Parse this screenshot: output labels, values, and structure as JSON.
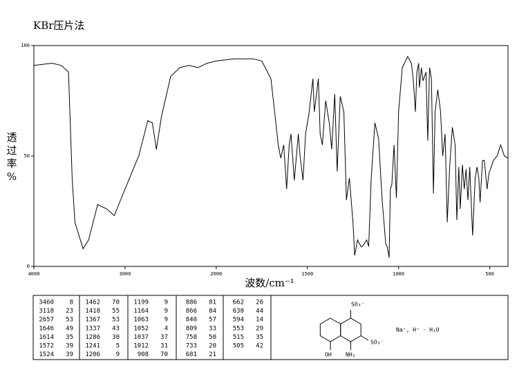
{
  "chart_data": {
    "type": "line",
    "title": "KBr压片法",
    "x_label": "波数/cm⁻¹",
    "y_label": "透过率\n%",
    "xlim": [
      4000,
      400
    ],
    "xticks": [
      4000,
      3000,
      2000,
      1500,
      1000,
      500
    ],
    "ylim": [
      0,
      100
    ],
    "yticks": [
      0,
      50,
      100
    ],
    "x": [
      4000,
      3800,
      3700,
      3620,
      3580,
      3550,
      3460,
      3400,
      3300,
      3200,
      3118,
      3050,
      2950,
      2850,
      2750,
      2700,
      2657,
      2600,
      2500,
      2400,
      2300,
      2200,
      2100,
      2000,
      1900,
      1800,
      1750,
      1700,
      1680,
      1660,
      1646,
      1630,
      1614,
      1600,
      1590,
      1572,
      1560,
      1550,
      1540,
      1524,
      1510,
      1490,
      1470,
      1462,
      1440,
      1430,
      1418,
      1400,
      1380,
      1367,
      1350,
      1337,
      1320,
      1300,
      1286,
      1270,
      1250,
      1241,
      1225,
      1206,
      1199,
      1190,
      1175,
      1164,
      1150,
      1130,
      1110,
      1090,
      1070,
      1063,
      1052,
      1045,
      1037,
      1025,
      1012,
      1000,
      980,
      950,
      930,
      920,
      908,
      900,
      890,
      886,
      875,
      866,
      850,
      840,
      830,
      820,
      809,
      800,
      785,
      770,
      758,
      745,
      733,
      720,
      705,
      690,
      681,
      670,
      662,
      650,
      640,
      630,
      620,
      610,
      594,
      580,
      570,
      560,
      553,
      540,
      530,
      515,
      505,
      480,
      460,
      440,
      420,
      400
    ],
    "series": [
      {
        "color": "#000000",
        "values": [
          91,
          92,
          91,
          88,
          40,
          20,
          8,
          12,
          28,
          26,
          23,
          30,
          40,
          50,
          66,
          65,
          53,
          68,
          86,
          90,
          91,
          90,
          92,
          93,
          94,
          94,
          93,
          85,
          70,
          55,
          49,
          55,
          35,
          55,
          60,
          39,
          50,
          60,
          50,
          39,
          60,
          70,
          85,
          70,
          85,
          60,
          55,
          75,
          65,
          53,
          78,
          43,
          77,
          70,
          30,
          40,
          20,
          5,
          12,
          9,
          9,
          10,
          12,
          9,
          40,
          65,
          58,
          30,
          10,
          9,
          4,
          35,
          37,
          55,
          31,
          70,
          90,
          95,
          92,
          85,
          70,
          88,
          92,
          81,
          90,
          84,
          88,
          57,
          90,
          85,
          33,
          70,
          80,
          70,
          50,
          60,
          20,
          45,
          63,
          55,
          21,
          45,
          26,
          46,
          35,
          44,
          30,
          45,
          14,
          40,
          45,
          40,
          29,
          48,
          48,
          35,
          42,
          48,
          50,
          55,
          50,
          49
        ]
      }
    ]
  },
  "peak_table": [
    [
      [
        3460,
        8
      ],
      [
        3118,
        23
      ],
      [
        2657,
        53
      ],
      [
        1646,
        49
      ],
      [
        1614,
        35
      ],
      [
        1572,
        39
      ],
      [
        1524,
        39
      ]
    ],
    [
      [
        1462,
        70
      ],
      [
        1418,
        55
      ],
      [
        1367,
        53
      ],
      [
        1337,
        43
      ],
      [
        1286,
        30
      ],
      [
        1241,
        5
      ],
      [
        1206,
        9
      ]
    ],
    [
      [
        1199,
        9
      ],
      [
        1164,
        9
      ],
      [
        1063,
        9
      ],
      [
        1052,
        4
      ],
      [
        1037,
        37
      ],
      [
        1012,
        31
      ],
      [
        908,
        70
      ]
    ],
    [
      [
        886,
        81
      ],
      [
        866,
        84
      ],
      [
        840,
        57
      ],
      [
        809,
        33
      ],
      [
        758,
        50
      ],
      [
        733,
        20
      ],
      [
        681,
        21
      ]
    ],
    [
      [
        662,
        26
      ],
      [
        630,
        44
      ],
      [
        594,
        14
      ],
      [
        553,
        29
      ],
      [
        515,
        35
      ],
      [
        505,
        42
      ]
    ]
  ],
  "structure": {
    "top_group": "SO₃⁻",
    "side_group": "SO₃⁻",
    "amine": "NH₂",
    "hydroxyl": "OH",
    "counter_ions": "Na⁺, H⁺ · H₂O"
  }
}
